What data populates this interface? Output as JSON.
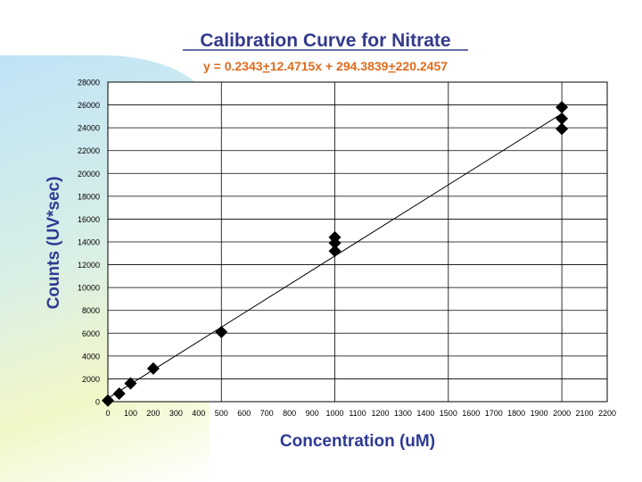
{
  "chart_data": {
    "type": "scatter",
    "title": "Calibration Curve for Nitrate",
    "equation_parts": [
      "y = 0.2343",
      "+",
      "12.4715x + 294.3839",
      "+",
      "220.2457"
    ],
    "xlabel": "Concentration (uM)",
    "ylabel": "Counts (UV*sec)",
    "xlim": [
      0,
      2200
    ],
    "ylim": [
      0,
      28000
    ],
    "x_ticks": [
      0,
      100,
      200,
      300,
      400,
      500,
      600,
      700,
      800,
      900,
      1000,
      1100,
      1200,
      1300,
      1400,
      1500,
      1600,
      1700,
      1800,
      1900,
      2000,
      2100,
      2200
    ],
    "y_ticks": [
      0,
      2000,
      4000,
      6000,
      8000,
      10000,
      12000,
      14000,
      16000,
      18000,
      20000,
      22000,
      24000,
      26000,
      28000
    ],
    "x_gridlines": [
      500,
      1000,
      1500,
      2000
    ],
    "y_gridlines": [
      2000,
      4000,
      6000,
      8000,
      10000,
      12000,
      14000,
      16000,
      18000,
      20000,
      22000,
      24000,
      26000,
      28000
    ],
    "points": [
      {
        "x": 0,
        "y": 100
      },
      {
        "x": 50,
        "y": 700
      },
      {
        "x": 100,
        "y": 1600
      },
      {
        "x": 200,
        "y": 2900
      },
      {
        "x": 500,
        "y": 6100
      },
      {
        "x": 1000,
        "y": 13200
      },
      {
        "x": 1000,
        "y": 13900
      },
      {
        "x": 1000,
        "y": 14400
      },
      {
        "x": 2000,
        "y": 23900
      },
      {
        "x": 2000,
        "y": 24800
      },
      {
        "x": 2000,
        "y": 25800
      }
    ],
    "fit": {
      "slope": 12.4715,
      "intercept": 294.3839,
      "x_range": [
        0,
        2000
      ]
    }
  }
}
